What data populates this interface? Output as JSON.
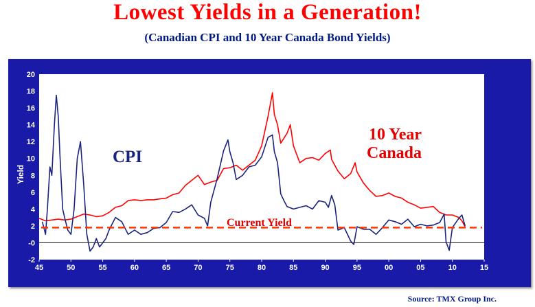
{
  "chart_data": {
    "type": "line",
    "title": "Lowest Yields in a Generation!",
    "subtitle": "(Canadian CPI and 10 Year Canada Bond Yields)",
    "ylabel": "Yield",
    "xlabel": "",
    "xlim": [
      45,
      15
    ],
    "ylim": [
      -2,
      20
    ],
    "x_ticks": [
      "45",
      "50",
      "55",
      "60",
      "65",
      "70",
      "75",
      "80",
      "85",
      "90",
      "95",
      "00",
      "05",
      "10",
      "15"
    ],
    "y_ticks": [
      "20",
      "18",
      "16",
      "14",
      "12",
      "10",
      "8",
      "6",
      "4",
      "2",
      "-0",
      "-2"
    ],
    "grid": false,
    "reference_line": {
      "label": "Current Yield",
      "y": 1.8,
      "color": "#ff3300"
    },
    "zero_line": 0,
    "annotations": {
      "cpi": "CPI",
      "ten_year_line1": "10 Year",
      "ten_year_line2": "Canada",
      "current_yield": "Current Yield"
    },
    "series": [
      {
        "name": "10 Year Canada",
        "color": "#ff0000",
        "x": [
          1945.0,
          1946.0,
          1947.0,
          1948.0,
          1949.0,
          1950.0,
          1951.0,
          1952.0,
          1953.0,
          1954.0,
          1955.0,
          1956.0,
          1957.0,
          1958.0,
          1959.0,
          1960.0,
          1961.0,
          1962.0,
          1963.0,
          1964.0,
          1965.0,
          1966.0,
          1967.0,
          1968.0,
          1969.0,
          1970.0,
          1971.0,
          1972.0,
          1973.0,
          1974.0,
          1975.0,
          1976.0,
          1977.0,
          1978.0,
          1979.0,
          1980.0,
          1981.0,
          1981.7,
          1982.0,
          1982.5,
          1983.0,
          1984.0,
          1984.5,
          1985.0,
          1986.0,
          1987.0,
          1988.0,
          1989.0,
          1990.0,
          1990.8,
          1991.0,
          1992.0,
          1993.0,
          1994.0,
          1994.7,
          1995.0,
          1996.0,
          1997.0,
          1998.0,
          1999.0,
          2000.0,
          2001.0,
          2002.0,
          2003.0,
          2004.0,
          2005.0,
          2006.0,
          2007.0,
          2008.0,
          2009.0,
          2010.0,
          2011.0,
          2011.5,
          2012.0
        ],
        "y": [
          2.9,
          2.6,
          2.7,
          2.8,
          2.7,
          2.8,
          3.1,
          3.4,
          3.3,
          3.1,
          3.2,
          3.6,
          4.2,
          4.4,
          5.0,
          5.1,
          5.0,
          5.1,
          5.1,
          5.2,
          5.3,
          5.7,
          5.9,
          6.8,
          7.4,
          8.0,
          6.9,
          7.2,
          7.4,
          8.8,
          8.9,
          9.2,
          8.6,
          9.2,
          9.8,
          11.5,
          15.0,
          17.8,
          15.2,
          14.0,
          11.8,
          13.0,
          14.0,
          11.5,
          9.5,
          10.0,
          10.1,
          9.8,
          10.6,
          11.0,
          9.9,
          8.5,
          7.6,
          8.2,
          9.5,
          8.4,
          7.1,
          6.2,
          5.5,
          5.6,
          5.9,
          5.5,
          5.3,
          4.8,
          4.5,
          4.1,
          4.2,
          4.3,
          3.6,
          3.3,
          3.3,
          3.0,
          2.6,
          1.9
        ]
      },
      {
        "name": "CPI",
        "color": "#1a237e",
        "x": [
          1945.5,
          1946.0,
          1946.3,
          1946.7,
          1947.0,
          1947.4,
          1947.7,
          1948.0,
          1948.3,
          1948.7,
          1949.0,
          1949.5,
          1950.0,
          1950.5,
          1951.0,
          1951.5,
          1952.0,
          1952.5,
          1953.0,
          1953.5,
          1954.0,
          1954.5,
          1955.0,
          1955.5,
          1956.0,
          1957.0,
          1958.0,
          1959.0,
          1960.0,
          1961.0,
          1962.0,
          1963.0,
          1964.0,
          1965.0,
          1966.0,
          1967.0,
          1968.0,
          1969.0,
          1970.0,
          1971.0,
          1971.5,
          1972.0,
          1973.0,
          1974.0,
          1974.7,
          1975.0,
          1975.5,
          1976.0,
          1977.0,
          1978.0,
          1979.0,
          1980.0,
          1981.0,
          1981.7,
          1982.0,
          1982.5,
          1983.0,
          1983.5,
          1984.0,
          1985.0,
          1986.0,
          1987.0,
          1988.0,
          1989.0,
          1990.0,
          1990.5,
          1991.0,
          1991.5,
          1992.0,
          1993.0,
          1994.0,
          1994.5,
          1995.0,
          1996.0,
          1997.0,
          1998.0,
          1999.0,
          2000.0,
          2001.0,
          2002.0,
          2003.0,
          2004.0,
          2005.0,
          2006.0,
          2007.0,
          2008.0,
          2008.7,
          2009.0,
          2009.5,
          2010.0,
          2011.0,
          2011.5,
          2012.0
        ],
        "y": [
          2.5,
          1.0,
          4.0,
          9.0,
          8.0,
          14.0,
          17.5,
          15.0,
          10.0,
          4.0,
          3.0,
          1.5,
          1.0,
          4.0,
          10.0,
          12.0,
          7.0,
          1.0,
          -1.0,
          -0.5,
          0.5,
          -0.5,
          0.0,
          0.5,
          1.5,
          3.0,
          2.5,
          1.0,
          1.5,
          1.0,
          1.2,
          1.7,
          1.8,
          2.4,
          3.7,
          3.6,
          4.0,
          4.5,
          3.3,
          2.9,
          2.0,
          4.8,
          7.6,
          10.9,
          12.2,
          10.8,
          9.5,
          7.5,
          8.0,
          9.0,
          9.2,
          10.2,
          12.5,
          12.8,
          10.8,
          9.5,
          5.8,
          5.0,
          4.3,
          4.0,
          4.2,
          4.4,
          4.0,
          5.0,
          4.8,
          4.2,
          5.6,
          4.5,
          1.5,
          1.8,
          0.2,
          -0.2,
          1.9,
          1.6,
          1.6,
          1.0,
          1.8,
          2.7,
          2.5,
          2.2,
          2.8,
          1.9,
          2.2,
          2.0,
          2.1,
          2.4,
          3.4,
          0.1,
          -0.9,
          1.8,
          2.9,
          3.3,
          2.0
        ]
      }
    ]
  },
  "source": "Source: TMX Group Inc."
}
